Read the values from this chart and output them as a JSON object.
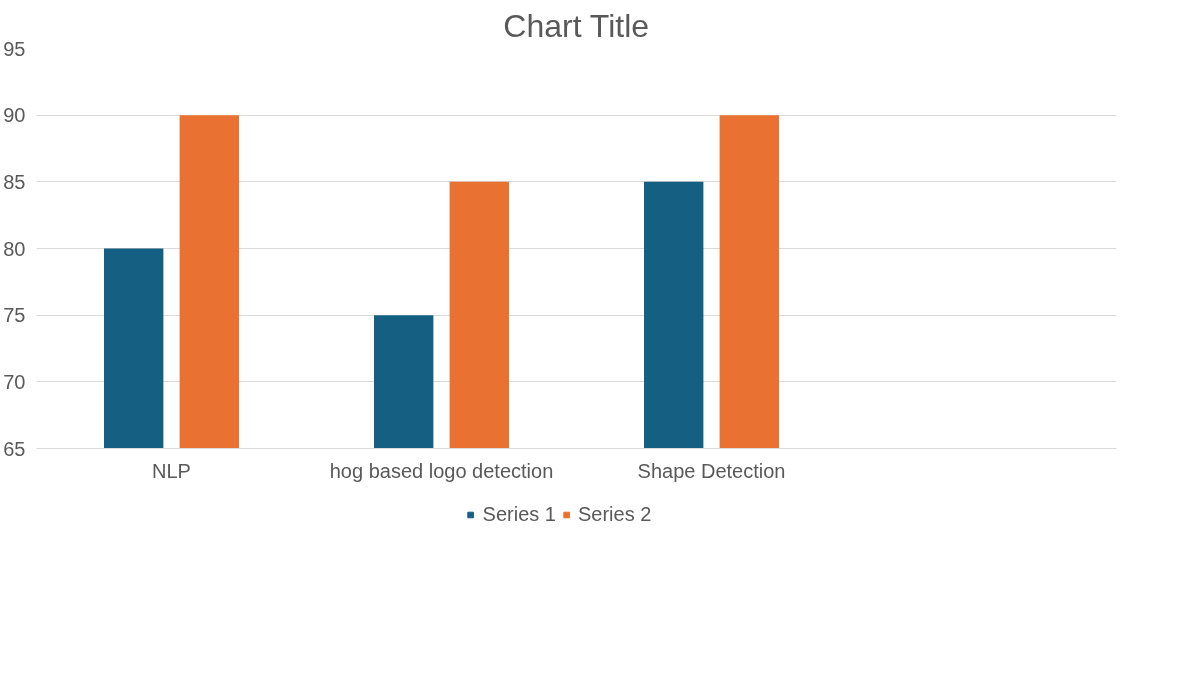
{
  "chart_data": {
    "type": "bar",
    "title": "Chart Title",
    "categories": [
      "NLP",
      "hog based logo detection",
      "Shape Detection",
      null
    ],
    "series": [
      {
        "name": "Series 1",
        "color": "#156082",
        "values": [
          80,
          75,
          85,
          null
        ]
      },
      {
        "name": "Series 2",
        "color": "#e97132",
        "values": [
          90,
          85,
          90,
          null
        ]
      }
    ],
    "ylim": [
      65,
      95
    ],
    "yticks": [
      65,
      70,
      75,
      80,
      85,
      90,
      95
    ],
    "grid": "y",
    "legend": "bottom"
  }
}
